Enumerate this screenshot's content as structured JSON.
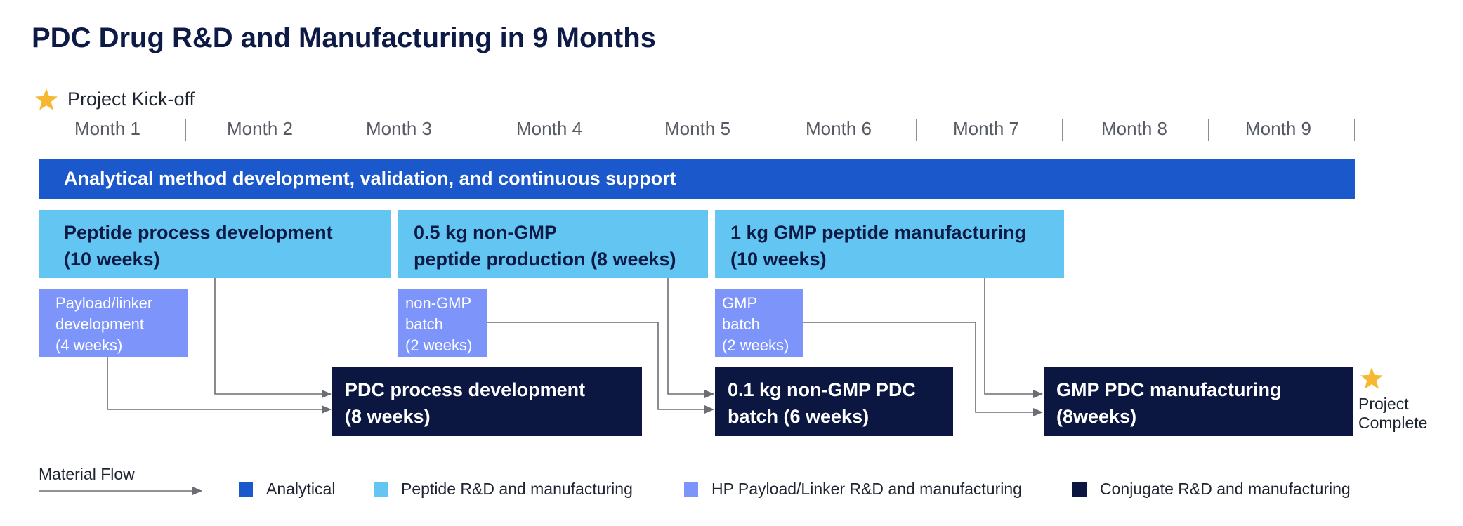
{
  "title": "PDC Drug R&D and Manufacturing in 9 Months",
  "kickoff": {
    "label": "Project Kick-off",
    "icon": "star-icon"
  },
  "months": [
    "Month 1",
    "Month 2",
    "Month 3",
    "Month 4",
    "Month 5",
    "Month 6",
    "Month 7",
    "Month 8",
    "Month 9"
  ],
  "analytical": {
    "label": "Analytical method development, validation, and continuous support"
  },
  "peptide": [
    {
      "line1": "Peptide process development",
      "line2": "(10 weeks)"
    },
    {
      "line1": "0.5 kg non-GMP",
      "line2": "peptide production (8 weeks)"
    },
    {
      "line1": "1 kg GMP peptide manufacturing",
      "line2": "(10 weeks)"
    }
  ],
  "payload": [
    {
      "line1": "Payload/linker",
      "line2": "development",
      "line3": "(4 weeks)"
    },
    {
      "line1": "non-GMP",
      "line2": "batch",
      "line3": "(2 weeks)"
    },
    {
      "line1": "GMP",
      "line2": "batch",
      "line3": "(2 weeks)"
    }
  ],
  "conjugate": [
    {
      "line1": "PDC process development",
      "line2": "(8 weeks)"
    },
    {
      "line1": "0.1 kg non-GMP PDC",
      "line2": "batch (6 weeks)"
    },
    {
      "line1": "GMP PDC manufacturing",
      "line2": "(8weeks)"
    }
  ],
  "complete": {
    "line1": "Project",
    "line2": "Complete",
    "icon": "star-icon"
  },
  "legend": {
    "flow_label": "Material Flow",
    "items": [
      {
        "label": "Analytical",
        "color": "#1b58cc"
      },
      {
        "label": "Peptide R&D and manufacturing",
        "color": "#62c5f2"
      },
      {
        "label": "HP Payload/Linker R&D and manufacturing",
        "color": "#7d95fb"
      },
      {
        "label": "Conjugate R&D and manufacturing",
        "color": "#0b1740"
      }
    ]
  },
  "colors": {
    "title": "#0c1a45",
    "star": "#f5b82e",
    "arrow": "#6b6e75"
  }
}
